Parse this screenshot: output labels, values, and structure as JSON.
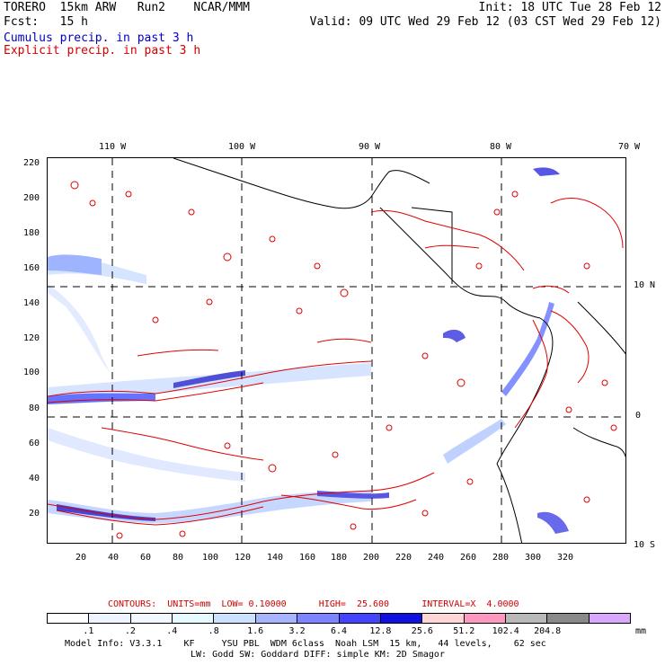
{
  "header": {
    "line1_left": "TORERO  15km ARW   Run2    NCAR/MMM",
    "line1_right": "Init: 18 UTC Tue 28 Feb 12",
    "line2_left": "Fcst:   15 h",
    "line2_right": "Valid: 09 UTC Wed 29 Feb 12 (03 CST Wed 29 Feb 12)",
    "line3": "Cumulus precip. in past 3 h",
    "line4": "Explicit precip. in past 3 h"
  },
  "map": {
    "lon_labels": [
      "110 W",
      "100 W",
      "90 W",
      "80 W",
      "70 W"
    ],
    "lat_labels": [
      "10 N",
      "0",
      "10 S"
    ],
    "y_ticks": [
      "220",
      "200",
      "180",
      "160",
      "140",
      "120",
      "100",
      "80",
      "60",
      "40",
      "20"
    ],
    "x_ticks": [
      "20",
      "40",
      "60",
      "80",
      "100",
      "120",
      "140",
      "160",
      "180",
      "200",
      "220",
      "240",
      "260",
      "280",
      "300",
      "320"
    ]
  },
  "contours": {
    "label": "CONTOURS:  UNITS=mm  LOW= 0.10000      HIGH=  25.600      INTERVAL=X  4.0000"
  },
  "colorbar": {
    "unit": "mm",
    "values": [
      ".1",
      ".2",
      ".4",
      ".8",
      "1.6",
      "3.2",
      "6.4",
      "12.8",
      "25.6",
      "51.2",
      "102.4",
      "204.8"
    ],
    "colors": [
      "#ffffff",
      "#eef4ff",
      "#f2f8ff",
      "#e6fbff",
      "#cce0ff",
      "#a6b4ff",
      "#7e84ff",
      "#4444ff",
      "#1010e0",
      "#ffd6d6",
      "#ff98c0",
      "#b8b8b8",
      "#8a8a8a",
      "#d8a8ff"
    ]
  },
  "footer": {
    "line1": "Model Info: V3.3.1    KF     YSU PBL  WDM 6class  Noah LSM  15 km,   44 levels,    62 sec",
    "line2": "LW: Godd SW: Goddard DIFF: simple KM: 2D Smagor"
  }
}
